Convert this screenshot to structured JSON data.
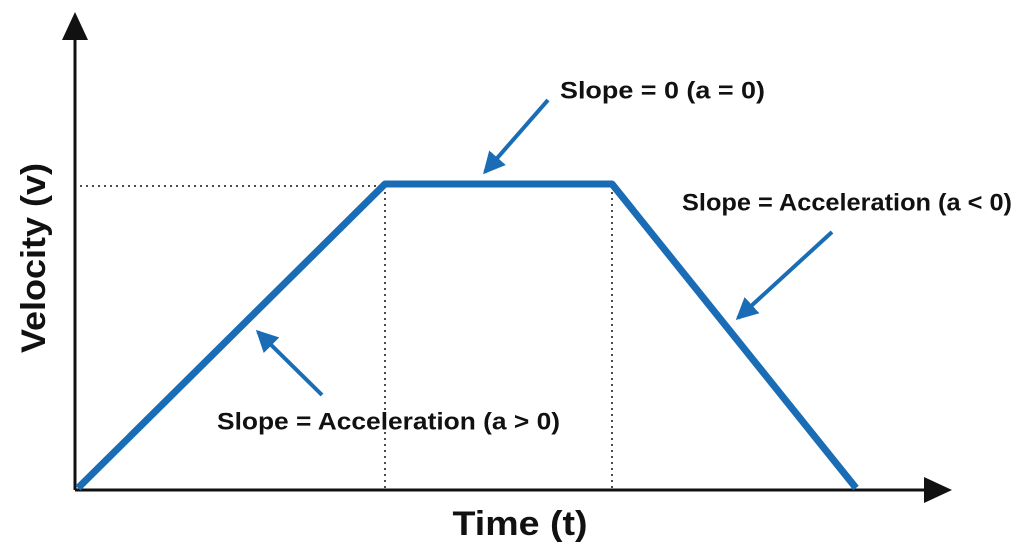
{
  "axes": {
    "x_label": "Time (t)",
    "y_label": "Velocity (v)"
  },
  "annotations": {
    "constant": "Slope = 0 (a = 0)",
    "decelerating": "Slope = Acceleration (a < 0)",
    "accelerating": "Slope = Acceleration (a > 0)"
  }
}
